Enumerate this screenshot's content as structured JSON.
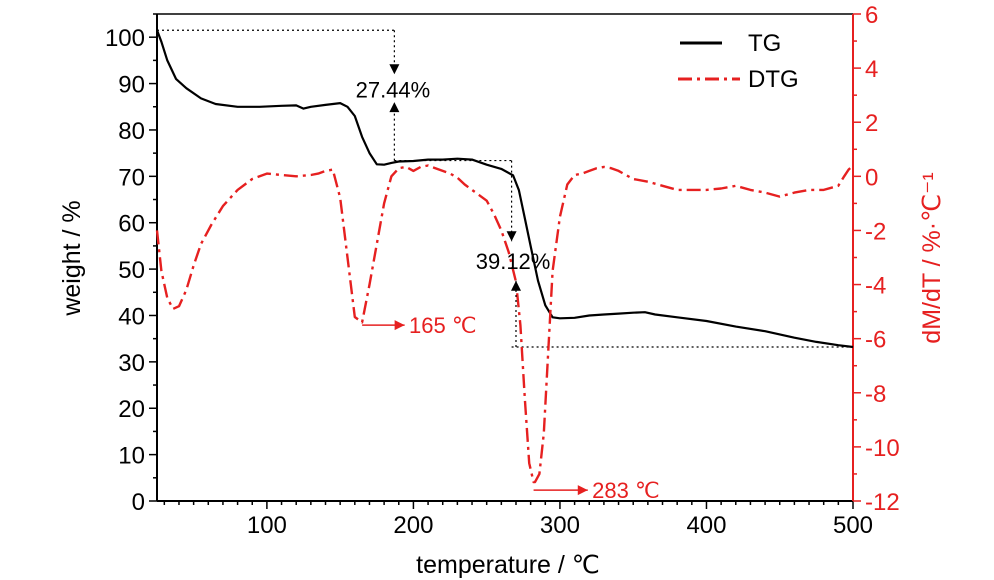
{
  "chart_data": {
    "type": "line",
    "xlabel": "temperature / ℃",
    "ylabel_left": "weight / %",
    "ylabel_right": "dM/dT / %·℃⁻¹",
    "xlim": [
      25,
      500
    ],
    "ylim_left": [
      0,
      105
    ],
    "ylim_right": [
      -12,
      6
    ],
    "x_ticks": [
      100,
      200,
      300,
      400,
      500
    ],
    "y_left_ticks": [
      0,
      10,
      20,
      30,
      40,
      50,
      60,
      70,
      80,
      90,
      100
    ],
    "y_right_ticks": [
      -12,
      -10,
      -8,
      -6,
      -4,
      -2,
      0,
      2,
      4,
      6
    ],
    "legend_position": "top-right",
    "series": [
      {
        "name": "TG",
        "axis": "left",
        "color": "#000000",
        "style": "solid",
        "x": [
          25,
          28,
          32,
          38,
          45,
          55,
          65,
          80,
          95,
          110,
          120,
          125,
          130,
          140,
          150,
          155,
          160,
          165,
          170,
          175,
          180,
          185,
          190,
          200,
          210,
          220,
          230,
          240,
          250,
          260,
          268,
          272,
          276,
          280,
          285,
          290,
          295,
          300,
          310,
          320,
          330,
          340,
          350,
          358,
          365,
          380,
          400,
          420,
          440,
          460,
          475,
          490,
          500
        ],
        "y": [
          101.5,
          99,
          95,
          91,
          89,
          86.8,
          85.6,
          85,
          85,
          85.2,
          85.3,
          84.6,
          85,
          85.4,
          85.8,
          85,
          83,
          78.5,
          75,
          72.6,
          72.5,
          72.9,
          73.2,
          73.3,
          73.6,
          73.6,
          73.8,
          73.6,
          72.5,
          71.6,
          70.2,
          67,
          61,
          55,
          47.5,
          42.2,
          39.6,
          39.4,
          39.5,
          40,
          40.2,
          40.4,
          40.6,
          40.7,
          40.2,
          39.6,
          38.8,
          37.6,
          36.6,
          35.2,
          34.3,
          33.6,
          33.2
        ]
      },
      {
        "name": "DTG",
        "axis": "right",
        "color": "#e62020",
        "style": "dash-dot",
        "x": [
          25,
          28,
          32,
          36,
          40,
          45,
          50,
          55,
          62,
          70,
          80,
          90,
          100,
          110,
          120,
          130,
          135,
          140,
          145,
          150,
          155,
          160,
          165,
          170,
          175,
          180,
          185,
          190,
          195,
          200,
          205,
          210,
          215,
          220,
          225,
          230,
          235,
          240,
          245,
          250,
          255,
          260,
          265,
          270,
          273,
          276,
          279,
          282,
          283,
          286,
          289,
          292,
          295,
          300,
          305,
          310,
          315,
          320,
          325,
          330,
          335,
          340,
          345,
          350,
          360,
          370,
          380,
          390,
          400,
          410,
          420,
          430,
          440,
          450,
          460,
          470,
          480,
          490,
          494,
          497,
          500
        ],
        "y": [
          -2,
          -3.5,
          -4.5,
          -4.9,
          -4.8,
          -4.2,
          -3.3,
          -2.5,
          -1.8,
          -1.1,
          -0.5,
          -0.1,
          0.1,
          0.05,
          0,
          0.05,
          0.1,
          0.2,
          0.25,
          -0.8,
          -3,
          -5.2,
          -5.4,
          -4,
          -2.5,
          -1,
          0,
          0.3,
          0.35,
          0.2,
          0.35,
          0.4,
          0.3,
          0.2,
          0.1,
          -0.05,
          -0.3,
          -0.5,
          -0.7,
          -0.9,
          -1.4,
          -2,
          -2.8,
          -3.9,
          -5.5,
          -8.2,
          -10.6,
          -11.3,
          -11.3,
          -11,
          -9.5,
          -6.5,
          -3.5,
          -1.5,
          -0.3,
          0.05,
          0.1,
          0.2,
          0.3,
          0.35,
          0.3,
          0.2,
          0.05,
          -0.1,
          -0.2,
          -0.35,
          -0.5,
          -0.5,
          -0.5,
          -0.45,
          -0.35,
          -0.5,
          -0.6,
          -0.75,
          -0.6,
          -0.5,
          -0.5,
          -0.35,
          0,
          0.25,
          0.4
        ]
      }
    ],
    "annotations": [
      {
        "text": "27.44%",
        "x": 186,
        "y": 87
      },
      {
        "text": "39.12%",
        "x": 268,
        "y": 50
      },
      {
        "text": "165 ℃",
        "x": 166,
        "y": -5.4
      },
      {
        "text": "283 ℃",
        "x": 283,
        "y": -11.7
      }
    ],
    "reference_lines": [
      {
        "axis": "left",
        "y": 101.5,
        "x_range": [
          25,
          187
        ]
      },
      {
        "axis": "left",
        "y": 73.4,
        "x_range": [
          187,
          267
        ]
      },
      {
        "axis": "left",
        "y": 33.2,
        "x_range": [
          267,
          500
        ]
      }
    ]
  }
}
